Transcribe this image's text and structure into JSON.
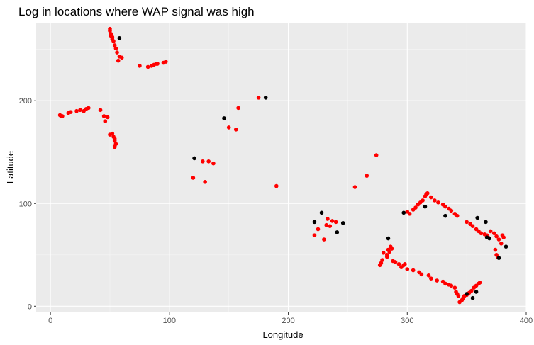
{
  "chart_data": {
    "type": "scatter",
    "title": "Log in locations where WAP signal was high",
    "xlabel": "Longitude",
    "ylabel": "Latitude",
    "xlim": [
      -12,
      400
    ],
    "ylim": [
      -6,
      276
    ],
    "xticks": [
      0,
      100,
      200,
      300,
      400
    ],
    "yticks": [
      0,
      100,
      200
    ],
    "grid": true,
    "legend": "none",
    "colors": {
      "panel": "#EBEBEB",
      "grid_major": "#FFFFFF",
      "grid_minor": "#F5F5F5",
      "red": "#FF0000",
      "black": "#000000",
      "tick": "#4D4D4D"
    },
    "points": {
      "red": [
        [
          50,
          270
        ],
        [
          50,
          268
        ],
        [
          51,
          265
        ],
        [
          51,
          263
        ],
        [
          52,
          262
        ],
        [
          52,
          260
        ],
        [
          53,
          258
        ],
        [
          54,
          254
        ],
        [
          55,
          251
        ],
        [
          56,
          247
        ],
        [
          58,
          243
        ],
        [
          57,
          239
        ],
        [
          60,
          242
        ],
        [
          75,
          234
        ],
        [
          82,
          233
        ],
        [
          85,
          234
        ],
        [
          87,
          235
        ],
        [
          89,
          236
        ],
        [
          90,
          236
        ],
        [
          95,
          237
        ],
        [
          97,
          238
        ],
        [
          8,
          186
        ],
        [
          9,
          185
        ],
        [
          10,
          185
        ],
        [
          15,
          188
        ],
        [
          17,
          189
        ],
        [
          22,
          190
        ],
        [
          25,
          191
        ],
        [
          28,
          190
        ],
        [
          30,
          192
        ],
        [
          32,
          193
        ],
        [
          42,
          191
        ],
        [
          45,
          185
        ],
        [
          46,
          180
        ],
        [
          48,
          184
        ],
        [
          50,
          167
        ],
        [
          52,
          168
        ],
        [
          53,
          165
        ],
        [
          54,
          163
        ],
        [
          54,
          161
        ],
        [
          55,
          158
        ],
        [
          54,
          156
        ],
        [
          54,
          155
        ],
        [
          120,
          125
        ],
        [
          130,
          121
        ],
        [
          128,
          141
        ],
        [
          133,
          141
        ],
        [
          137,
          139
        ],
        [
          150,
          174
        ],
        [
          156,
          172
        ],
        [
          158,
          193
        ],
        [
          175,
          203
        ],
        [
          190,
          117
        ],
        [
          222,
          69
        ],
        [
          225,
          75
        ],
        [
          230,
          65
        ],
        [
          232,
          79
        ],
        [
          233,
          85
        ],
        [
          235,
          78
        ],
        [
          237,
          83
        ],
        [
          240,
          82
        ],
        [
          256,
          116
        ],
        [
          266,
          127
        ],
        [
          274,
          147
        ],
        [
          277,
          40
        ],
        [
          278,
          42
        ],
        [
          279,
          45
        ],
        [
          280,
          52
        ],
        [
          283,
          50
        ],
        [
          283,
          48
        ],
        [
          284,
          55
        ],
        [
          285,
          53
        ],
        [
          286,
          58
        ],
        [
          287,
          56
        ],
        [
          288,
          44
        ],
        [
          290,
          43
        ],
        [
          293,
          41
        ],
        [
          295,
          38
        ],
        [
          297,
          40
        ],
        [
          298,
          41
        ],
        [
          300,
          36
        ],
        [
          305,
          35
        ],
        [
          310,
          33
        ],
        [
          312,
          31
        ],
        [
          318,
          30
        ],
        [
          320,
          27
        ],
        [
          325,
          25
        ],
        [
          330,
          24
        ],
        [
          332,
          22
        ],
        [
          335,
          21
        ],
        [
          337,
          20
        ],
        [
          340,
          18
        ],
        [
          341,
          14
        ],
        [
          342,
          12
        ],
        [
          343,
          10
        ],
        [
          344,
          4
        ],
        [
          346,
          6
        ],
        [
          347,
          8
        ],
        [
          348,
          10
        ],
        [
          350,
          11
        ],
        [
          352,
          13
        ],
        [
          354,
          15
        ],
        [
          356,
          18
        ],
        [
          358,
          20
        ],
        [
          360,
          22
        ],
        [
          361,
          23
        ],
        [
          300,
          92
        ],
        [
          302,
          90
        ],
        [
          305,
          94
        ],
        [
          307,
          96
        ],
        [
          309,
          99
        ],
        [
          311,
          101
        ],
        [
          313,
          103
        ],
        [
          315,
          107
        ],
        [
          316,
          109
        ],
        [
          317,
          110
        ],
        [
          320,
          106
        ],
        [
          323,
          103
        ],
        [
          326,
          101
        ],
        [
          330,
          99
        ],
        [
          332,
          97
        ],
        [
          335,
          95
        ],
        [
          337,
          93
        ],
        [
          340,
          90
        ],
        [
          342,
          88
        ],
        [
          350,
          82
        ],
        [
          353,
          80
        ],
        [
          355,
          78
        ],
        [
          358,
          75
        ],
        [
          360,
          73
        ],
        [
          362,
          71
        ],
        [
          365,
          70
        ],
        [
          367,
          69
        ],
        [
          368,
          67
        ],
        [
          370,
          73
        ],
        [
          373,
          71
        ],
        [
          375,
          68
        ],
        [
          377,
          65
        ],
        [
          379,
          61
        ],
        [
          380,
          69
        ],
        [
          381,
          67
        ],
        [
          374,
          55
        ],
        [
          375,
          50
        ],
        [
          376,
          48
        ]
      ],
      "black": [
        [
          58,
          261
        ],
        [
          146,
          183
        ],
        [
          181,
          203
        ],
        [
          121,
          144
        ],
        [
          222,
          82
        ],
        [
          228,
          91
        ],
        [
          241,
          72
        ],
        [
          246,
          81
        ],
        [
          284,
          66
        ],
        [
          297,
          91
        ],
        [
          315,
          97
        ],
        [
          332,
          88
        ],
        [
          350,
          12
        ],
        [
          355,
          8
        ],
        [
          358,
          14
        ],
        [
          359,
          86
        ],
        [
          366,
          82
        ],
        [
          367,
          67
        ],
        [
          369,
          66
        ],
        [
          377,
          47
        ],
        [
          383,
          58
        ]
      ]
    }
  }
}
